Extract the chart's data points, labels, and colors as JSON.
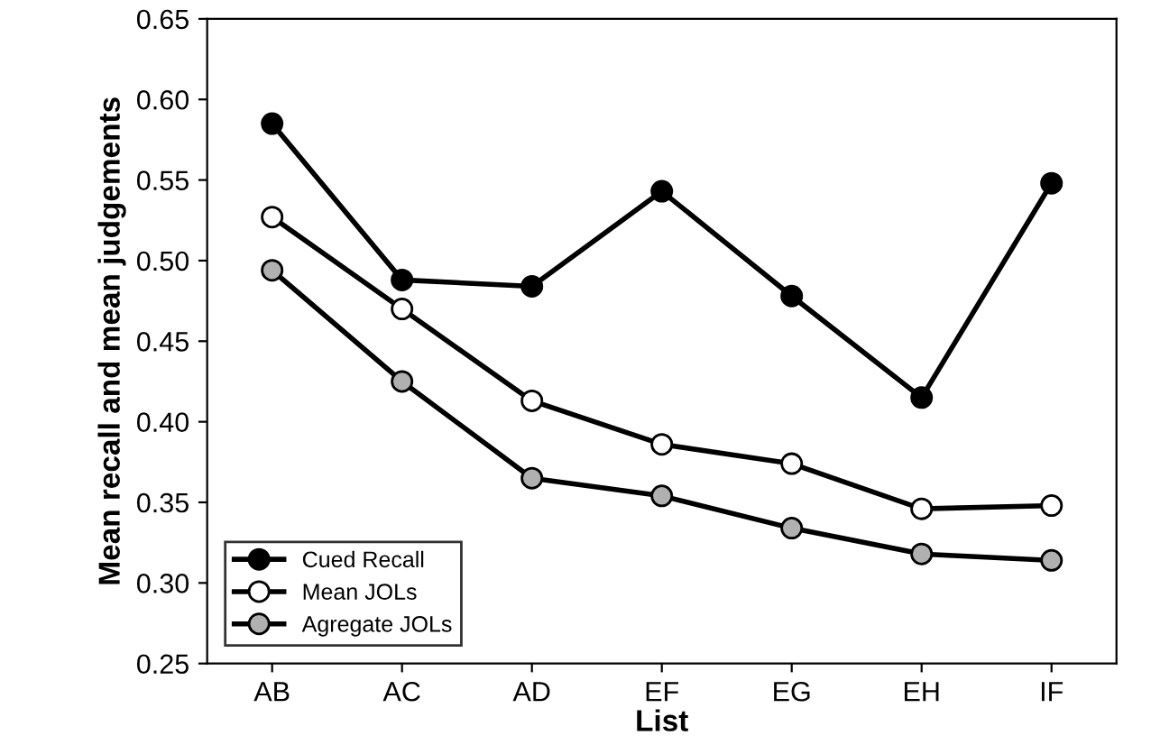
{
  "chart_data": {
    "type": "line",
    "xlabel": "List",
    "ylabel": "Mean recall and mean judgements",
    "categories": [
      "AB",
      "AC",
      "AD",
      "EF",
      "EG",
      "EH",
      "IF"
    ],
    "series": [
      {
        "name": "Cued Recall",
        "color": "#000000",
        "values": [
          0.585,
          0.488,
          0.484,
          0.543,
          0.478,
          0.415,
          0.548
        ]
      },
      {
        "name": "Mean JOLs",
        "color": "#ffffff",
        "values": [
          0.527,
          0.47,
          0.413,
          0.386,
          0.374,
          0.346,
          0.348
        ]
      },
      {
        "name": "Agregate JOLs",
        "color": "#b0b0b0",
        "values": [
          0.494,
          0.425,
          0.365,
          0.354,
          0.334,
          0.318,
          0.314
        ]
      }
    ],
    "ylim": [
      0.25,
      0.65
    ],
    "yticks": [
      {
        "value": 0.25,
        "label": "0.25"
      },
      {
        "value": 0.3,
        "label": "0.30"
      },
      {
        "value": 0.35,
        "label": "0.35"
      },
      {
        "value": 0.4,
        "label": "0.40"
      },
      {
        "value": 0.45,
        "label": "0.45"
      },
      {
        "value": 0.5,
        "label": "0.50"
      },
      {
        "value": 0.55,
        "label": "0.55"
      },
      {
        "value": 0.6,
        "label": "0.60"
      },
      {
        "value": 0.65,
        "label": "0.65"
      }
    ],
    "grid": false,
    "legend": "bottom left",
    "marker": "circle",
    "line_style": "solid"
  }
}
